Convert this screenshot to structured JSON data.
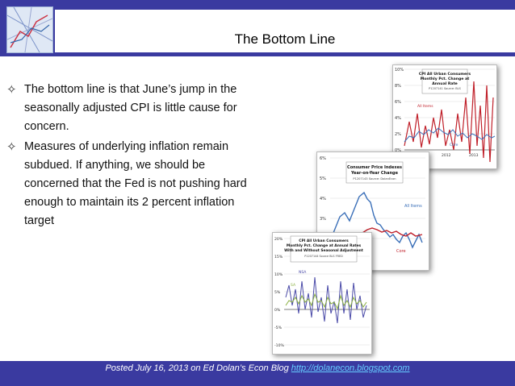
{
  "slide": {
    "title": "The Bottom Line",
    "bullets": [
      "The bottom line is that June’s jump in the seasonally adjusted CPI is little cause for concern.",
      "Measures of underlying inflation remain subdued. If anything, we should be concerned that the Fed is not pushing hard enough to maintain its 2 percent inflation target"
    ],
    "bullet_icon": "four-point-star-icon"
  },
  "footer": {
    "text": "Posted July 16, 2013 on Ed Dolan’s Econ Blog ",
    "link": "http://dolanecon.blogspot.com"
  },
  "thumbnails": {
    "chart1": {
      "title_lines": [
        "CPI All Urban Consumers",
        "Monthly Pct. Change at",
        "Annual Rate"
      ],
      "source": "P1207141 Source: BLS",
      "yticks": [
        "10%",
        "8%",
        "6%",
        "4%",
        "2%",
        "0%"
      ],
      "xticks": [
        "2011",
        "2012",
        "2013"
      ],
      "label_all": "All Items",
      "label_core": "Core"
    },
    "chart2": {
      "title_lines": [
        "Consumer Price Indexes",
        "Year-on-Year Change"
      ],
      "source": "P1207143 Source: DolanEcon",
      "yticks": [
        "6%",
        "5%",
        "4%",
        "3%"
      ],
      "label_all": "All Items",
      "label_core": "Core"
    },
    "chart3": {
      "title_lines": [
        "CPI All Urban Consumers",
        "Monthly Pct. Change at Annual Rates",
        "With and Without Seasonal Adjustment"
      ],
      "source": "P1207144 Source BLS FRED",
      "yticks": [
        "20%",
        "15%",
        "10%",
        "5%",
        "0%",
        "-5%",
        "-10%"
      ],
      "label_nsa": "NSA",
      "label_sa": "SA"
    }
  },
  "colors": {
    "background": "#3a3aa0",
    "all_items": "#c0202a",
    "core": "#3a6fb8",
    "nsa": "#4a4aa8",
    "sa": "#8ab040",
    "link": "#66ccff"
  }
}
